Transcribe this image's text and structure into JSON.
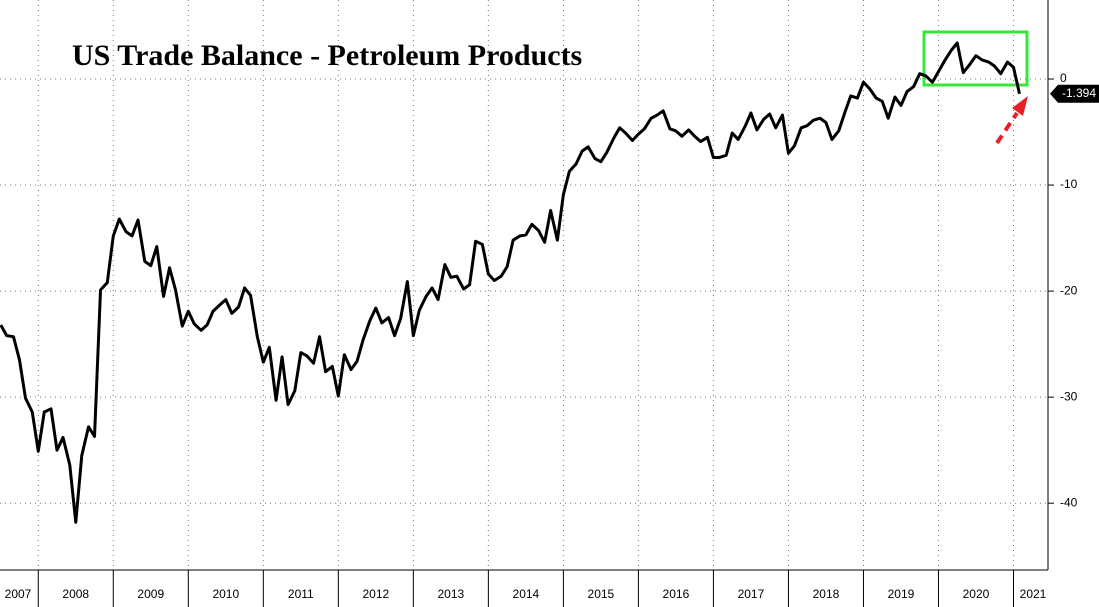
{
  "chart_data": {
    "type": "line",
    "title": "US Trade Balance - Petroleum Products",
    "color": "#000000",
    "grid": true,
    "x": [
      2007.5,
      2007.58,
      2007.67,
      2007.75,
      2007.83,
      2007.92,
      2008,
      2008.08,
      2008.17,
      2008.25,
      2008.33,
      2008.42,
      2008.5,
      2008.58,
      2008.67,
      2008.75,
      2008.83,
      2008.92,
      2009,
      2009.08,
      2009.17,
      2009.25,
      2009.33,
      2009.42,
      2009.5,
      2009.58,
      2009.67,
      2009.75,
      2009.83,
      2009.92,
      2010,
      2010.08,
      2010.17,
      2010.25,
      2010.33,
      2010.42,
      2010.5,
      2010.58,
      2010.67,
      2010.75,
      2010.83,
      2010.92,
      2011,
      2011.08,
      2011.17,
      2011.25,
      2011.33,
      2011.42,
      2011.5,
      2011.58,
      2011.67,
      2011.75,
      2011.83,
      2011.92,
      2012,
      2012.08,
      2012.17,
      2012.25,
      2012.33,
      2012.42,
      2012.5,
      2012.58,
      2012.67,
      2012.75,
      2012.83,
      2012.92,
      2013,
      2013.08,
      2013.17,
      2013.25,
      2013.33,
      2013.42,
      2013.5,
      2013.58,
      2013.67,
      2013.75,
      2013.83,
      2013.92,
      2014,
      2014.08,
      2014.17,
      2014.25,
      2014.33,
      2014.42,
      2014.5,
      2014.58,
      2014.67,
      2014.75,
      2014.83,
      2014.92,
      2015,
      2015.08,
      2015.17,
      2015.25,
      2015.33,
      2015.42,
      2015.5,
      2015.58,
      2015.67,
      2015.75,
      2015.83,
      2015.92,
      2016,
      2016.08,
      2016.17,
      2016.25,
      2016.33,
      2016.42,
      2016.5,
      2016.58,
      2016.67,
      2016.75,
      2016.83,
      2016.92,
      2017,
      2017.08,
      2017.17,
      2017.25,
      2017.33,
      2017.42,
      2017.5,
      2017.58,
      2017.67,
      2017.75,
      2017.83,
      2017.92,
      2018,
      2018.08,
      2018.17,
      2018.25,
      2018.33,
      2018.42,
      2018.5,
      2018.58,
      2018.67,
      2018.75,
      2018.83,
      2018.92,
      2019,
      2019.08,
      2019.17,
      2019.25,
      2019.33,
      2019.42,
      2019.5,
      2019.58,
      2019.67,
      2019.75,
      2019.83,
      2019.92,
      2020,
      2020.08,
      2020.17,
      2020.25,
      2020.33,
      2020.42,
      2020.5,
      2020.58,
      2020.67,
      2020.75,
      2020.83,
      2020.92,
      2021,
      2021.08
    ],
    "values": [
      -23.2,
      -24.2,
      -24.3,
      -26.5,
      -30.1,
      -31.4,
      -35.1,
      -31.4,
      -31.1,
      -35.0,
      -33.8,
      -36.4,
      -41.8,
      -35.5,
      -32.8,
      -33.7,
      -19.9,
      -19.2,
      -14.8,
      -13.2,
      -14.4,
      -14.8,
      -13.3,
      -17.2,
      -17.6,
      -15.8,
      -20.5,
      -17.8,
      -19.9,
      -23.3,
      -21.9,
      -23.1,
      -23.7,
      -23.2,
      -21.9,
      -21.3,
      -20.8,
      -22.1,
      -21.5,
      -19.7,
      -20.4,
      -24.3,
      -26.7,
      -25.3,
      -30.3,
      -26.2,
      -30.7,
      -29.4,
      -25.8,
      -26.1,
      -26.8,
      -24.3,
      -27.6,
      -27.1,
      -29.9,
      -26.0,
      -27.4,
      -26.6,
      -24.6,
      -22.8,
      -21.6,
      -23.0,
      -22.5,
      -24.2,
      -22.6,
      -19.1,
      -24.2,
      -21.8,
      -20.5,
      -19.7,
      -20.8,
      -17.5,
      -18.7,
      -18.6,
      -19.8,
      -19.4,
      -15.3,
      -15.6,
      -18.4,
      -19.0,
      -18.6,
      -17.7,
      -15.2,
      -14.8,
      -14.7,
      -13.7,
      -14.3,
      -15.4,
      -12.4,
      -15.2,
      -10.9,
      -8.7,
      -8.0,
      -6.8,
      -6.4,
      -7.5,
      -7.8,
      -6.9,
      -5.6,
      -4.6,
      -5.1,
      -5.8,
      -5.2,
      -4.7,
      -3.7,
      -3.4,
      -3.0,
      -4.7,
      -4.9,
      -5.4,
      -4.8,
      -5.4,
      -5.9,
      -5.5,
      -7.4,
      -7.4,
      -7.2,
      -5.1,
      -5.7,
      -4.5,
      -3.2,
      -4.8,
      -3.8,
      -3.3,
      -4.6,
      -3.4,
      -7.0,
      -6.3,
      -4.6,
      -4.4,
      -3.9,
      -3.7,
      -4.1,
      -5.7,
      -4.9,
      -3.2,
      -1.6,
      -1.8,
      -0.3,
      -0.9,
      -1.8,
      -2.1,
      -3.7,
      -1.7,
      -2.5,
      -1.2,
      -0.7,
      0.5,
      0.3,
      -0.3,
      0.7,
      1.7,
      2.7,
      3.4,
      0.6,
      1.4,
      2.2,
      1.8,
      1.6,
      1.2,
      0.5,
      1.6,
      1.1,
      -1.394
    ],
    "xlim": [
      2007.49,
      2021.46
    ],
    "xticks": [
      2007,
      2008,
      2009,
      2010,
      2011,
      2012,
      2013,
      2014,
      2015,
      2016,
      2017,
      2018,
      2019,
      2020,
      2021
    ],
    "ylim": [
      -46.3,
      7.45
    ],
    "yticks": [
      0,
      -10,
      -20,
      -30,
      -40
    ]
  }
}
